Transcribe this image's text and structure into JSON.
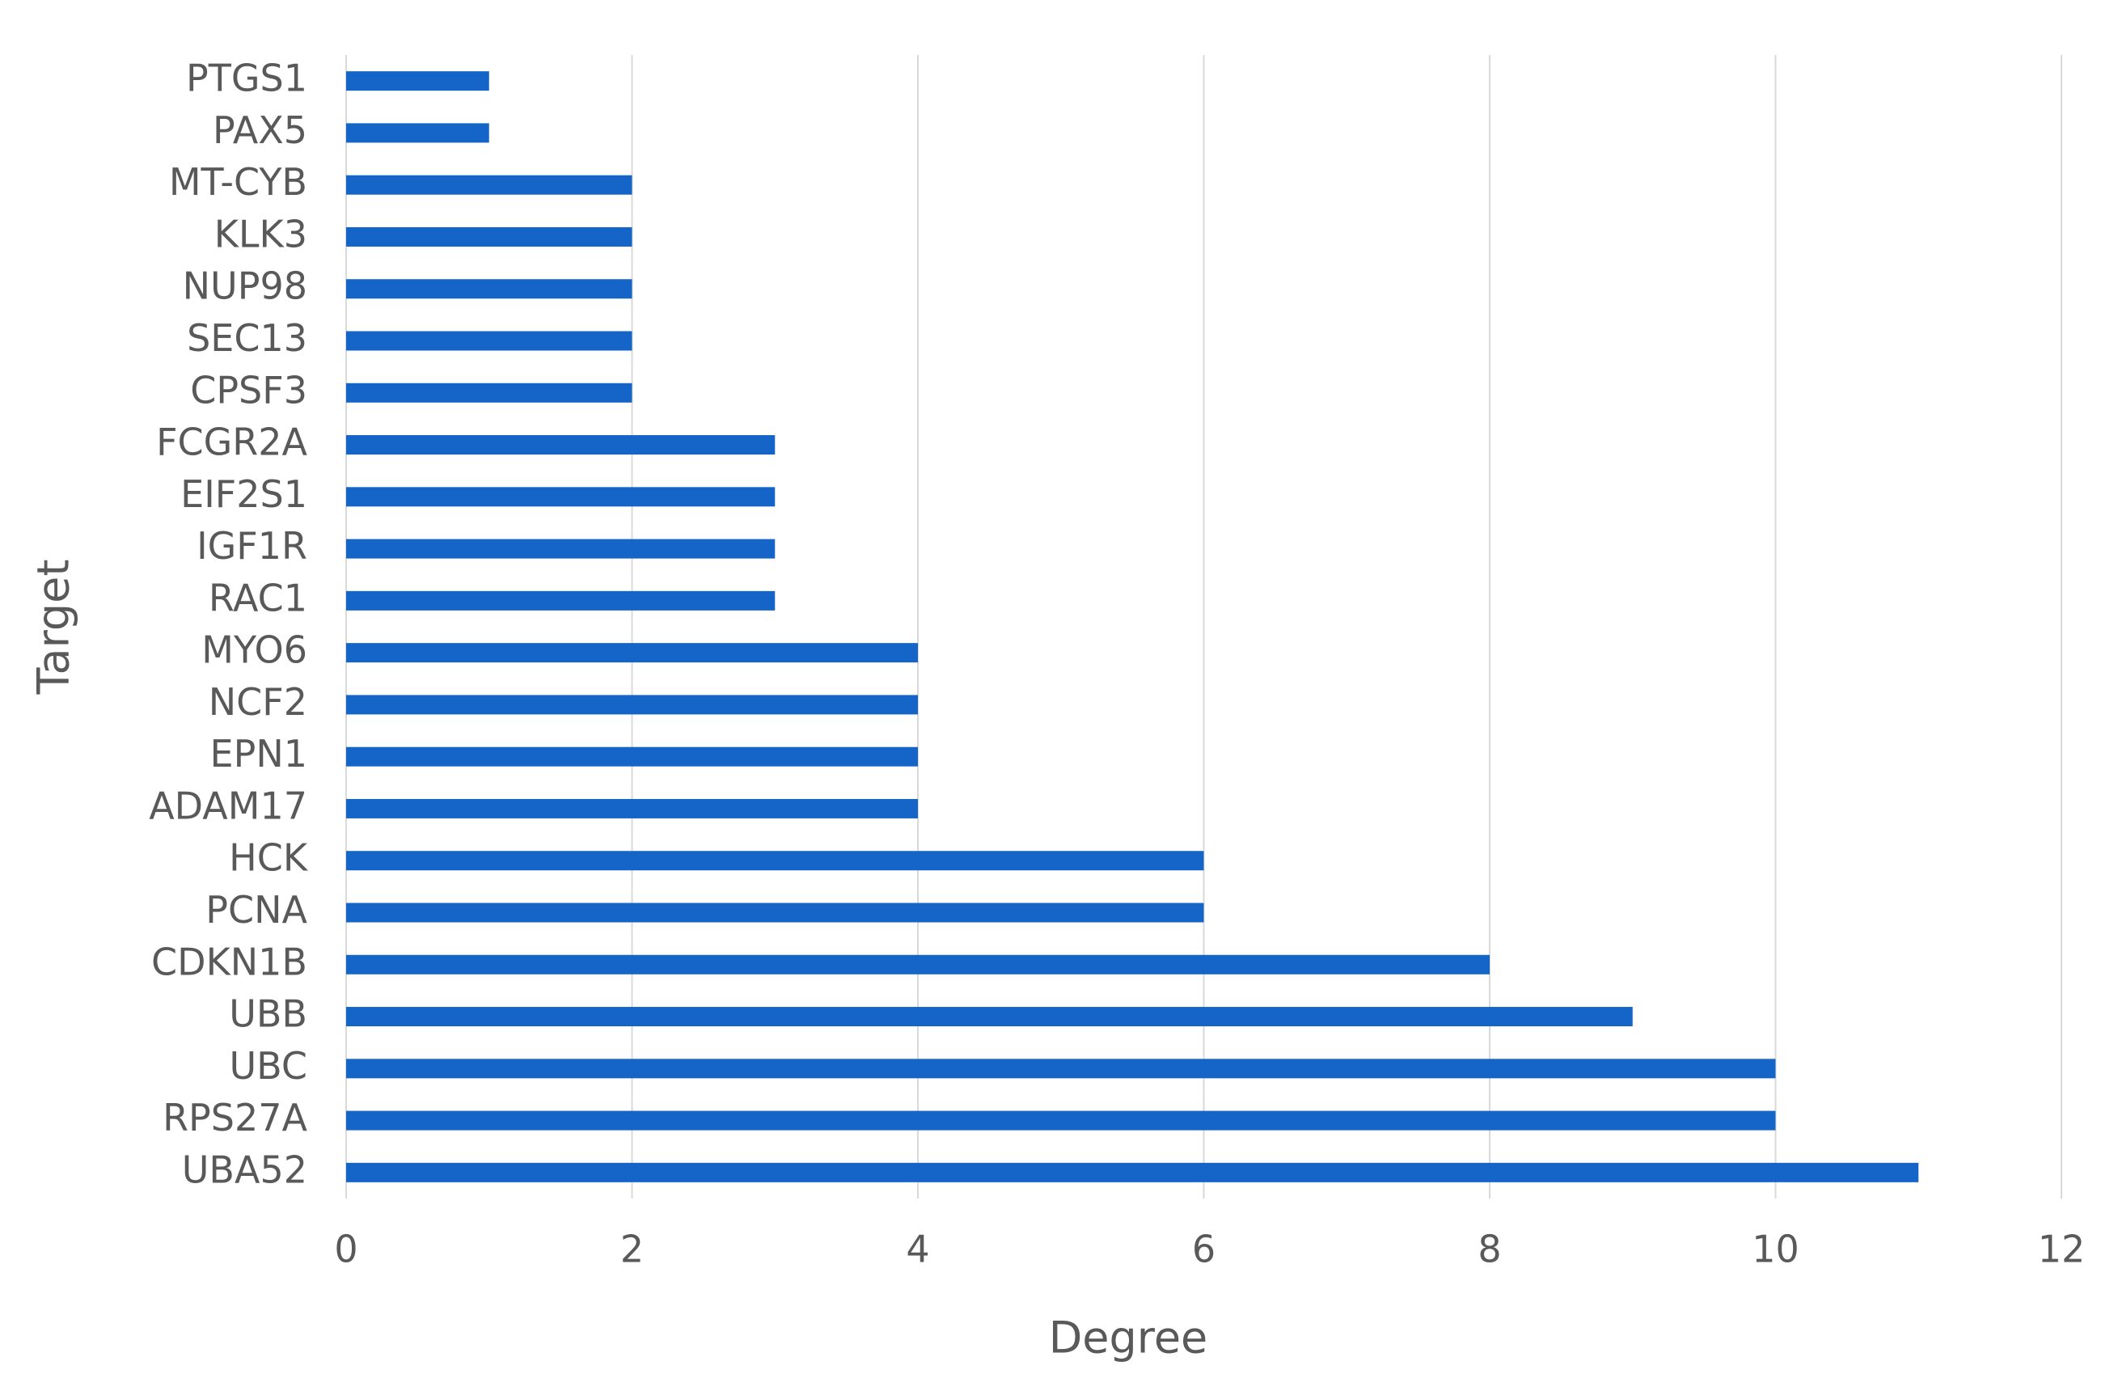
{
  "chart_data": {
    "type": "hbar",
    "x_label": "Degree",
    "y_label": "Target",
    "categories": [
      "PTGS1",
      "PAX5",
      "MT-CYB",
      "KLK3",
      "NUP98",
      "SEC13",
      "CPSF3",
      "FCGR2A",
      "EIF2S1",
      "IGF1R",
      "RAC1",
      "MYO6",
      "NCF2",
      "EPN1",
      "ADAM17",
      "HCK",
      "PCNA",
      "CDKN1B",
      "UBB",
      "UBC",
      "RPS27A",
      "UBA52"
    ],
    "values": [
      1,
      1,
      2,
      2,
      2,
      2,
      2,
      3,
      3,
      3,
      3,
      4,
      4,
      4,
      4,
      6,
      6,
      8,
      9,
      10,
      10,
      11
    ],
    "color": "#1565c8",
    "xlim": [
      0,
      12
    ],
    "xticks": [
      0,
      2,
      4,
      6,
      8,
      10,
      12
    ],
    "grid": true
  }
}
